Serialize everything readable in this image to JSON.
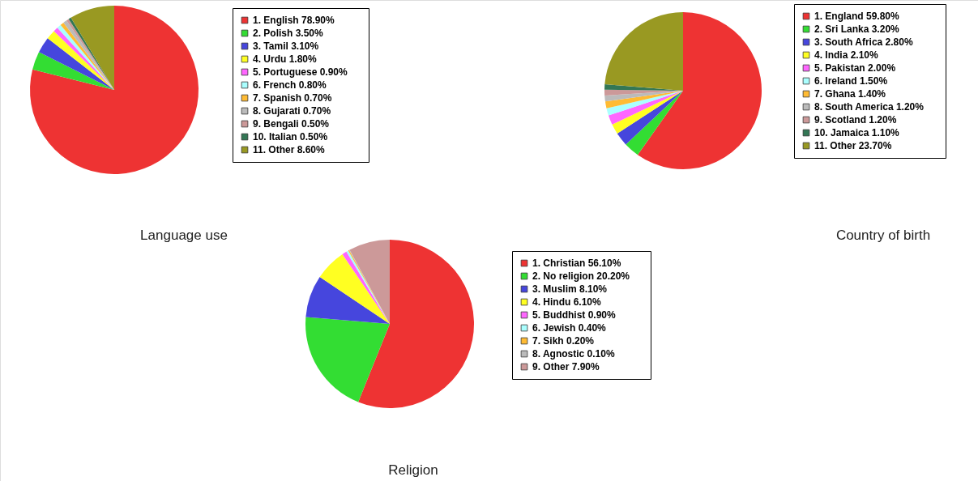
{
  "chart_data": [
    {
      "type": "pie",
      "title": "Language use",
      "legend": "right",
      "categories": [
        "1.  English",
        "2.  Polish",
        "3.  Tamil",
        "4.  Urdu",
        "5.  Portuguese",
        "6.  French",
        "7.  Spanish",
        "8.  Gujarati",
        "9.  Bengali",
        "10. Italian",
        "11. Other"
      ],
      "values": [
        78.9,
        3.5,
        3.1,
        1.8,
        0.9,
        0.8,
        0.7,
        0.7,
        0.5,
        0.5,
        8.6
      ],
      "value_labels": [
        "78.90%",
        "3.50%",
        "3.10%",
        "1.80%",
        "0.90%",
        "0.80%",
        "0.70%",
        "0.70%",
        "0.50%",
        "0.50%",
        "8.60%"
      ],
      "colors": [
        "#ee3333",
        "#33dd33",
        "#4646dd",
        "#ffff22",
        "#ff66ff",
        "#aaffff",
        "#ffbb33",
        "#bbbbbb",
        "#cc9999",
        "#337755",
        "#999922"
      ]
    },
    {
      "type": "pie",
      "title": "Country of birth",
      "legend": "right",
      "categories": [
        "1.  England",
        "2.  Sri Lanka",
        "3.  South Africa",
        "4.  India",
        "5.  Pakistan",
        "6.  Ireland",
        "7.  Ghana",
        "8.  South America",
        "9.  Scotland",
        "10. Jamaica",
        "11. Other"
      ],
      "values": [
        59.8,
        3.2,
        2.8,
        2.1,
        2.0,
        1.5,
        1.4,
        1.2,
        1.2,
        1.1,
        23.7
      ],
      "value_labels": [
        "59.80%",
        "3.20%",
        "2.80%",
        "2.10%",
        "2.00%",
        "1.50%",
        "1.40%",
        "1.20%",
        "1.20%",
        "1.10%",
        "23.70%"
      ],
      "colors": [
        "#ee3333",
        "#33dd33",
        "#4646dd",
        "#ffff22",
        "#ff66ff",
        "#aaffff",
        "#ffbb33",
        "#bbbbbb",
        "#cc9999",
        "#337755",
        "#999922"
      ]
    },
    {
      "type": "pie",
      "title": "Religion",
      "legend": "right",
      "categories": [
        "1.  Christian",
        "2.  No religion",
        "3.  Muslim",
        "4.  Hindu",
        "5.  Buddhist",
        "6.  Jewish",
        "7.  Sikh",
        "8.  Agnostic",
        "9.  Other"
      ],
      "values": [
        56.1,
        20.2,
        8.1,
        6.1,
        0.9,
        0.4,
        0.2,
        0.1,
        7.9
      ],
      "value_labels": [
        "56.10%",
        "20.20%",
        "8.10%",
        "6.10%",
        "0.90%",
        "0.40%",
        "0.20%",
        "0.10%",
        "7.90%"
      ],
      "colors": [
        "#ee3333",
        "#33dd33",
        "#4646dd",
        "#ffff22",
        "#ff66ff",
        "#aaffff",
        "#ffbb33",
        "#bbbbbb",
        "#cc9999"
      ]
    }
  ]
}
